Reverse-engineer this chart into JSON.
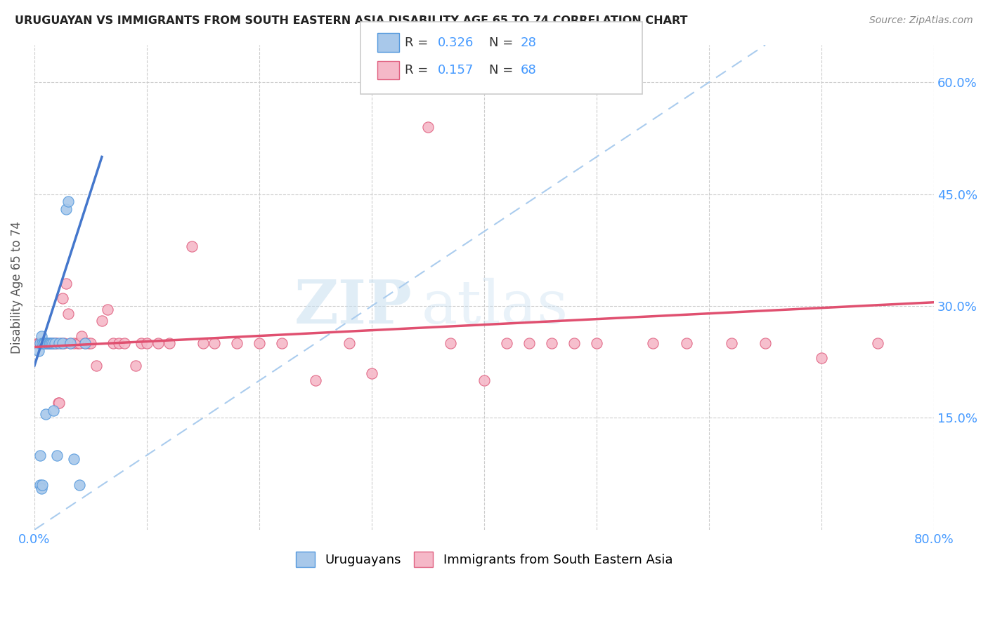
{
  "title": "URUGUAYAN VS IMMIGRANTS FROM SOUTH EASTERN ASIA DISABILITY AGE 65 TO 74 CORRELATION CHART",
  "source": "Source: ZipAtlas.com",
  "ylabel": "Disability Age 65 to 74",
  "xlim": [
    0.0,
    0.8
  ],
  "ylim": [
    0.0,
    0.65
  ],
  "xtick_positions": [
    0.0,
    0.1,
    0.2,
    0.3,
    0.4,
    0.5,
    0.6,
    0.7,
    0.8
  ],
  "xticklabels": [
    "0.0%",
    "",
    "",
    "",
    "",
    "",
    "",
    "",
    "80.0%"
  ],
  "ytick_positions": [
    0.15,
    0.3,
    0.45,
    0.6
  ],
  "ytick_labels": [
    "15.0%",
    "30.0%",
    "45.0%",
    "60.0%"
  ],
  "watermark_zip": "ZIP",
  "watermark_atlas": "atlas",
  "legend_r1": "0.326",
  "legend_n1": "28",
  "legend_r2": "0.157",
  "legend_n2": "68",
  "color_uruguayan_fill": "#a8c8ea",
  "color_uruguayan_edge": "#5599dd",
  "color_immigrant_fill": "#f5b8c8",
  "color_immigrant_edge": "#e06080",
  "color_line_uruguayan": "#4477cc",
  "color_line_immigrant": "#e05070",
  "color_diagonal": "#aaccee",
  "legend_label1": "Uruguayans",
  "legend_label2": "Immigrants from South Eastern Asia",
  "uru_x": [
    0.004,
    0.005,
    0.005,
    0.005,
    0.006,
    0.006,
    0.007,
    0.007,
    0.008,
    0.009,
    0.01,
    0.011,
    0.012,
    0.013,
    0.014,
    0.015,
    0.016,
    0.017,
    0.018,
    0.02,
    0.022,
    0.025,
    0.028,
    0.03,
    0.032,
    0.035,
    0.04,
    0.045
  ],
  "uru_y": [
    0.24,
    0.1,
    0.25,
    0.06,
    0.26,
    0.055,
    0.25,
    0.06,
    0.25,
    0.25,
    0.155,
    0.25,
    0.25,
    0.25,
    0.25,
    0.25,
    0.25,
    0.16,
    0.25,
    0.1,
    0.25,
    0.25,
    0.43,
    0.44,
    0.25,
    0.095,
    0.06,
    0.25
  ],
  "imm_x": [
    0.003,
    0.004,
    0.005,
    0.006,
    0.007,
    0.007,
    0.008,
    0.009,
    0.01,
    0.011,
    0.012,
    0.013,
    0.014,
    0.015,
    0.016,
    0.017,
    0.018,
    0.019,
    0.02,
    0.021,
    0.022,
    0.024,
    0.025,
    0.026,
    0.028,
    0.03,
    0.032,
    0.035,
    0.038,
    0.04,
    0.042,
    0.045,
    0.048,
    0.05,
    0.055,
    0.06,
    0.065,
    0.07,
    0.075,
    0.08,
    0.09,
    0.095,
    0.1,
    0.11,
    0.12,
    0.14,
    0.15,
    0.16,
    0.18,
    0.2,
    0.22,
    0.25,
    0.28,
    0.3,
    0.35,
    0.37,
    0.4,
    0.42,
    0.44,
    0.46,
    0.48,
    0.5,
    0.55,
    0.58,
    0.62,
    0.65,
    0.7,
    0.75
  ],
  "imm_y": [
    0.25,
    0.25,
    0.25,
    0.25,
    0.25,
    0.25,
    0.25,
    0.25,
    0.25,
    0.25,
    0.25,
    0.25,
    0.25,
    0.25,
    0.25,
    0.25,
    0.25,
    0.25,
    0.25,
    0.17,
    0.17,
    0.25,
    0.31,
    0.25,
    0.33,
    0.29,
    0.25,
    0.25,
    0.25,
    0.25,
    0.26,
    0.25,
    0.25,
    0.25,
    0.22,
    0.28,
    0.295,
    0.25,
    0.25,
    0.25,
    0.22,
    0.25,
    0.25,
    0.25,
    0.25,
    0.38,
    0.25,
    0.25,
    0.25,
    0.25,
    0.25,
    0.2,
    0.25,
    0.21,
    0.54,
    0.25,
    0.2,
    0.25,
    0.25,
    0.25,
    0.25,
    0.25,
    0.25,
    0.25,
    0.25,
    0.25,
    0.23,
    0.25
  ],
  "trend_uru_x0": 0.0,
  "trend_uru_y0": 0.22,
  "trend_uru_x1": 0.06,
  "trend_uru_y1": 0.5,
  "trend_imm_x0": 0.0,
  "trend_imm_y0": 0.245,
  "trend_imm_x1": 0.8,
  "trend_imm_y1": 0.305
}
